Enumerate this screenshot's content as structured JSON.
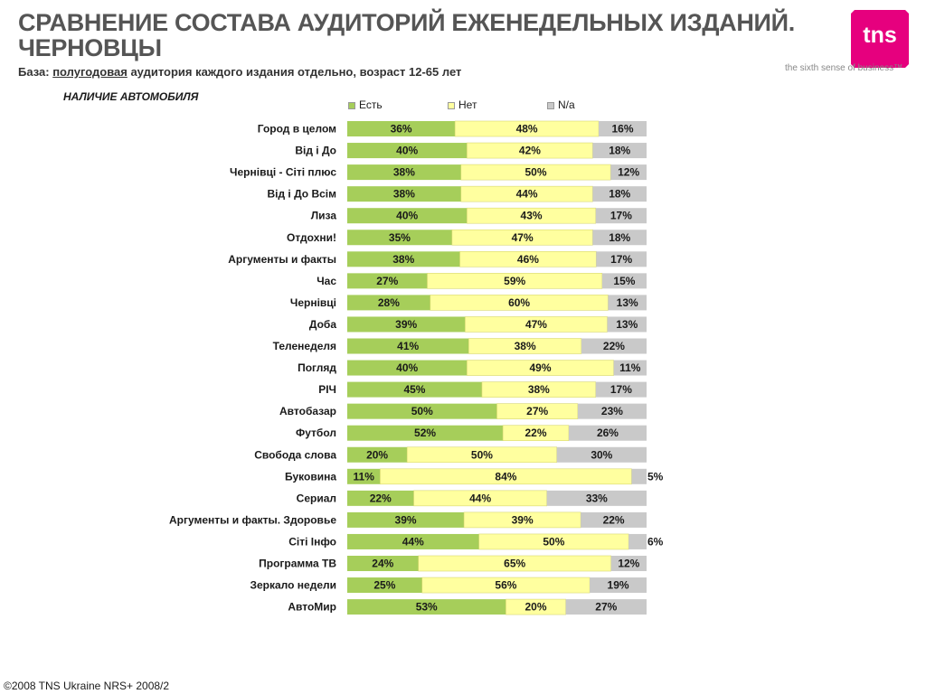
{
  "header": {
    "title_line1": "СРАВНЕНИЕ СОСТАВА АУДИТОРИЙ ЕЖЕНЕДЕЛЬНЫХ ИЗДАНИЙ.",
    "title_line2": "ЧЕРНОВЦЫ",
    "subtitle_prefix": "База: ",
    "subtitle_underlined": "полугодовая",
    "subtitle_rest": " аудитория каждого издания отдельно, возраст 12-65 лет"
  },
  "logo": {
    "text": "tns",
    "tagline": "the sixth sense of business™",
    "color": "#E6007E"
  },
  "footer": {
    "text": "©2008 TNS Ukraine  NRS+ 2008/2"
  },
  "colors": {
    "yes": "#A6CE5A",
    "no": "#FFFF9F",
    "na": "#C9C9C9"
  },
  "chart_data": {
    "type": "bar",
    "orientation": "horizontal",
    "stacked": true,
    "title": "НАЛИЧИЕ АВТОМОБИЛЯ",
    "categories": [
      "Город в целом",
      "Від і До",
      "Чернівці - Сіті плюс",
      "Від і До Всім",
      "Лиза",
      "Отдохни!",
      "Аргументы и факты",
      "Час",
      "Чернівці",
      "Доба",
      "Теленеделя",
      "Погляд",
      "РІЧ",
      "Автобазар",
      "Футбол",
      "Свобода слова",
      "Буковина",
      "Сериал",
      "Аргументы и факты. Здоровье",
      "Сіті Інфо",
      "Программа ТВ",
      "Зеркало недели",
      "АвтоМир"
    ],
    "series": [
      {
        "name": "Есть",
        "values": [
          36,
          40,
          38,
          38,
          40,
          35,
          38,
          27,
          28,
          39,
          41,
          40,
          45,
          50,
          52,
          20,
          11,
          22,
          39,
          44,
          24,
          25,
          53
        ]
      },
      {
        "name": "Нет",
        "values": [
          48,
          42,
          50,
          44,
          43,
          47,
          46,
          59,
          60,
          47,
          38,
          49,
          38,
          27,
          22,
          50,
          84,
          44,
          39,
          50,
          65,
          56,
          20
        ]
      },
      {
        "name": "N/a",
        "values": [
          16,
          18,
          12,
          18,
          17,
          18,
          17,
          15,
          13,
          13,
          22,
          11,
          17,
          23,
          26,
          30,
          5,
          33,
          22,
          6,
          12,
          19,
          27
        ]
      }
    ],
    "value_suffix": "%",
    "legend_position": "top",
    "grid": false
  }
}
